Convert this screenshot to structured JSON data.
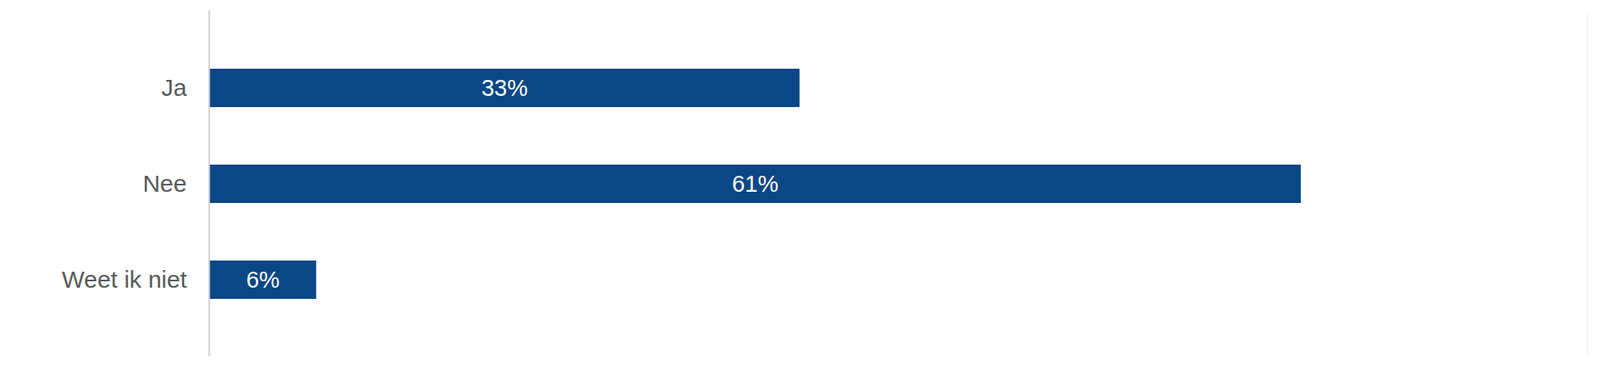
{
  "chart_data": {
    "type": "bar",
    "orientation": "horizontal",
    "categories": [
      "Ja",
      "Nee",
      "Weet ik niet"
    ],
    "values": [
      33,
      61,
      6
    ],
    "value_labels": [
      "33%",
      "61%",
      "6%"
    ],
    "color": "#0b4786",
    "xlim": [
      0,
      77
    ],
    "data_labels": true,
    "tick_labels": "y",
    "grid": false
  }
}
